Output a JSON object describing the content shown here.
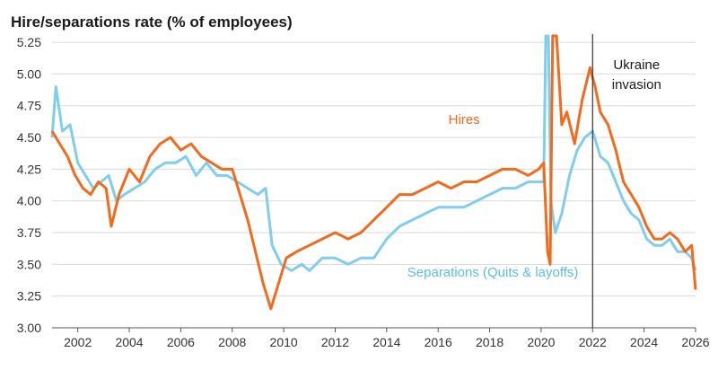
{
  "chart_data": {
    "type": "line",
    "title": "Hire/separations rate (% of employees)",
    "xlabel": "",
    "ylabel": "",
    "xlim": [
      2001.0,
      2026.0
    ],
    "ylim": [
      3.0,
      5.3
    ],
    "y_ticks": [
      "3.00",
      "3.25",
      "3.50",
      "3.75",
      "4.00",
      "4.25",
      "4.50",
      "4.75",
      "5.00",
      "5.25"
    ],
    "x_ticks": [
      "2002",
      "2004",
      "2006",
      "2008",
      "2010",
      "2012",
      "2014",
      "2016",
      "2018",
      "2020",
      "2022",
      "2024",
      "2026"
    ],
    "grid": "horizontal",
    "series": [
      {
        "name": "Hires",
        "color": "#f26b1d",
        "label_text": "Hires",
        "points": [
          [
            2001.0,
            4.55
          ],
          [
            2001.3,
            4.45
          ],
          [
            2001.6,
            4.35
          ],
          [
            2001.9,
            4.2
          ],
          [
            2002.2,
            4.1
          ],
          [
            2002.5,
            4.05
          ],
          [
            2002.8,
            4.15
          ],
          [
            2003.1,
            4.1
          ],
          [
            2003.3,
            3.8
          ],
          [
            2003.6,
            4.05
          ],
          [
            2004.0,
            4.25
          ],
          [
            2004.4,
            4.15
          ],
          [
            2004.8,
            4.35
          ],
          [
            2005.2,
            4.45
          ],
          [
            2005.6,
            4.5
          ],
          [
            2006.0,
            4.4
          ],
          [
            2006.4,
            4.45
          ],
          [
            2006.8,
            4.35
          ],
          [
            2007.2,
            4.3
          ],
          [
            2007.6,
            4.25
          ],
          [
            2008.0,
            4.25
          ],
          [
            2008.3,
            4.05
          ],
          [
            2008.6,
            3.85
          ],
          [
            2008.9,
            3.6
          ],
          [
            2009.2,
            3.35
          ],
          [
            2009.5,
            3.15
          ],
          [
            2009.8,
            3.35
          ],
          [
            2010.1,
            3.55
          ],
          [
            2010.5,
            3.6
          ],
          [
            2011.0,
            3.65
          ],
          [
            2011.5,
            3.7
          ],
          [
            2012.0,
            3.75
          ],
          [
            2012.5,
            3.7
          ],
          [
            2013.0,
            3.75
          ],
          [
            2013.5,
            3.85
          ],
          [
            2014.0,
            3.95
          ],
          [
            2014.5,
            4.05
          ],
          [
            2015.0,
            4.05
          ],
          [
            2015.5,
            4.1
          ],
          [
            2016.0,
            4.15
          ],
          [
            2016.5,
            4.1
          ],
          [
            2017.0,
            4.15
          ],
          [
            2017.5,
            4.15
          ],
          [
            2018.0,
            4.2
          ],
          [
            2018.5,
            4.25
          ],
          [
            2019.0,
            4.25
          ],
          [
            2019.5,
            4.2
          ],
          [
            2019.9,
            4.25
          ],
          [
            2020.1,
            4.3
          ],
          [
            2020.25,
            3.6
          ],
          [
            2020.35,
            3.5
          ],
          [
            2020.45,
            5.3
          ],
          [
            2020.6,
            5.3
          ],
          [
            2020.8,
            4.6
          ],
          [
            2021.0,
            4.7
          ],
          [
            2021.3,
            4.45
          ],
          [
            2021.6,
            4.8
          ],
          [
            2021.9,
            5.05
          ],
          [
            2022.1,
            4.9
          ],
          [
            2022.3,
            4.7
          ],
          [
            2022.6,
            4.6
          ],
          [
            2022.9,
            4.4
          ],
          [
            2023.2,
            4.15
          ],
          [
            2023.5,
            4.05
          ],
          [
            2023.8,
            3.95
          ],
          [
            2024.1,
            3.8
          ],
          [
            2024.4,
            3.7
          ],
          [
            2024.7,
            3.7
          ],
          [
            2025.0,
            3.75
          ],
          [
            2025.3,
            3.7
          ],
          [
            2025.6,
            3.6
          ],
          [
            2025.85,
            3.65
          ],
          [
            2026.0,
            3.3
          ]
        ]
      },
      {
        "name": "Separations (Quits & layoffs)",
        "color": "#7fcdef",
        "label_text": "Separations (Quits & layoffs)",
        "points": [
          [
            2001.0,
            4.5
          ],
          [
            2001.15,
            4.9
          ],
          [
            2001.4,
            4.55
          ],
          [
            2001.7,
            4.6
          ],
          [
            2002.0,
            4.3
          ],
          [
            2002.3,
            4.2
          ],
          [
            2002.6,
            4.1
          ],
          [
            2002.9,
            4.15
          ],
          [
            2003.2,
            4.2
          ],
          [
            2003.5,
            4.0
          ],
          [
            2003.8,
            4.05
          ],
          [
            2004.2,
            4.1
          ],
          [
            2004.6,
            4.15
          ],
          [
            2005.0,
            4.25
          ],
          [
            2005.4,
            4.3
          ],
          [
            2005.8,
            4.3
          ],
          [
            2006.2,
            4.35
          ],
          [
            2006.6,
            4.2
          ],
          [
            2007.0,
            4.3
          ],
          [
            2007.4,
            4.2
          ],
          [
            2007.8,
            4.2
          ],
          [
            2008.2,
            4.15
          ],
          [
            2008.6,
            4.1
          ],
          [
            2009.0,
            4.05
          ],
          [
            2009.3,
            4.1
          ],
          [
            2009.55,
            3.65
          ],
          [
            2009.9,
            3.5
          ],
          [
            2010.3,
            3.45
          ],
          [
            2010.7,
            3.5
          ],
          [
            2011.0,
            3.45
          ],
          [
            2011.5,
            3.55
          ],
          [
            2012.0,
            3.55
          ],
          [
            2012.5,
            3.5
          ],
          [
            2013.0,
            3.55
          ],
          [
            2013.5,
            3.55
          ],
          [
            2014.0,
            3.7
          ],
          [
            2014.5,
            3.8
          ],
          [
            2015.0,
            3.85
          ],
          [
            2015.5,
            3.9
          ],
          [
            2016.0,
            3.95
          ],
          [
            2016.5,
            3.95
          ],
          [
            2017.0,
            3.95
          ],
          [
            2017.5,
            4.0
          ],
          [
            2018.0,
            4.05
          ],
          [
            2018.5,
            4.1
          ],
          [
            2019.0,
            4.1
          ],
          [
            2019.5,
            4.15
          ],
          [
            2019.9,
            4.15
          ],
          [
            2020.1,
            4.15
          ],
          [
            2020.18,
            5.3
          ],
          [
            2020.28,
            5.3
          ],
          [
            2020.38,
            4.0
          ],
          [
            2020.55,
            3.75
          ],
          [
            2020.8,
            3.9
          ],
          [
            2021.1,
            4.2
          ],
          [
            2021.4,
            4.4
          ],
          [
            2021.7,
            4.5
          ],
          [
            2022.0,
            4.55
          ],
          [
            2022.3,
            4.35
          ],
          [
            2022.6,
            4.3
          ],
          [
            2022.9,
            4.15
          ],
          [
            2023.2,
            4.0
          ],
          [
            2023.5,
            3.9
          ],
          [
            2023.8,
            3.85
          ],
          [
            2024.1,
            3.7
          ],
          [
            2024.4,
            3.65
          ],
          [
            2024.7,
            3.65
          ],
          [
            2025.0,
            3.7
          ],
          [
            2025.3,
            3.6
          ],
          [
            2025.6,
            3.6
          ],
          [
            2025.85,
            3.55
          ],
          [
            2026.0,
            3.45
          ]
        ]
      }
    ],
    "annotations": [
      {
        "text_lines": [
          "Ukraine",
          "invasion"
        ],
        "at_year": 2022.0,
        "kind": "vertical-line"
      }
    ]
  }
}
